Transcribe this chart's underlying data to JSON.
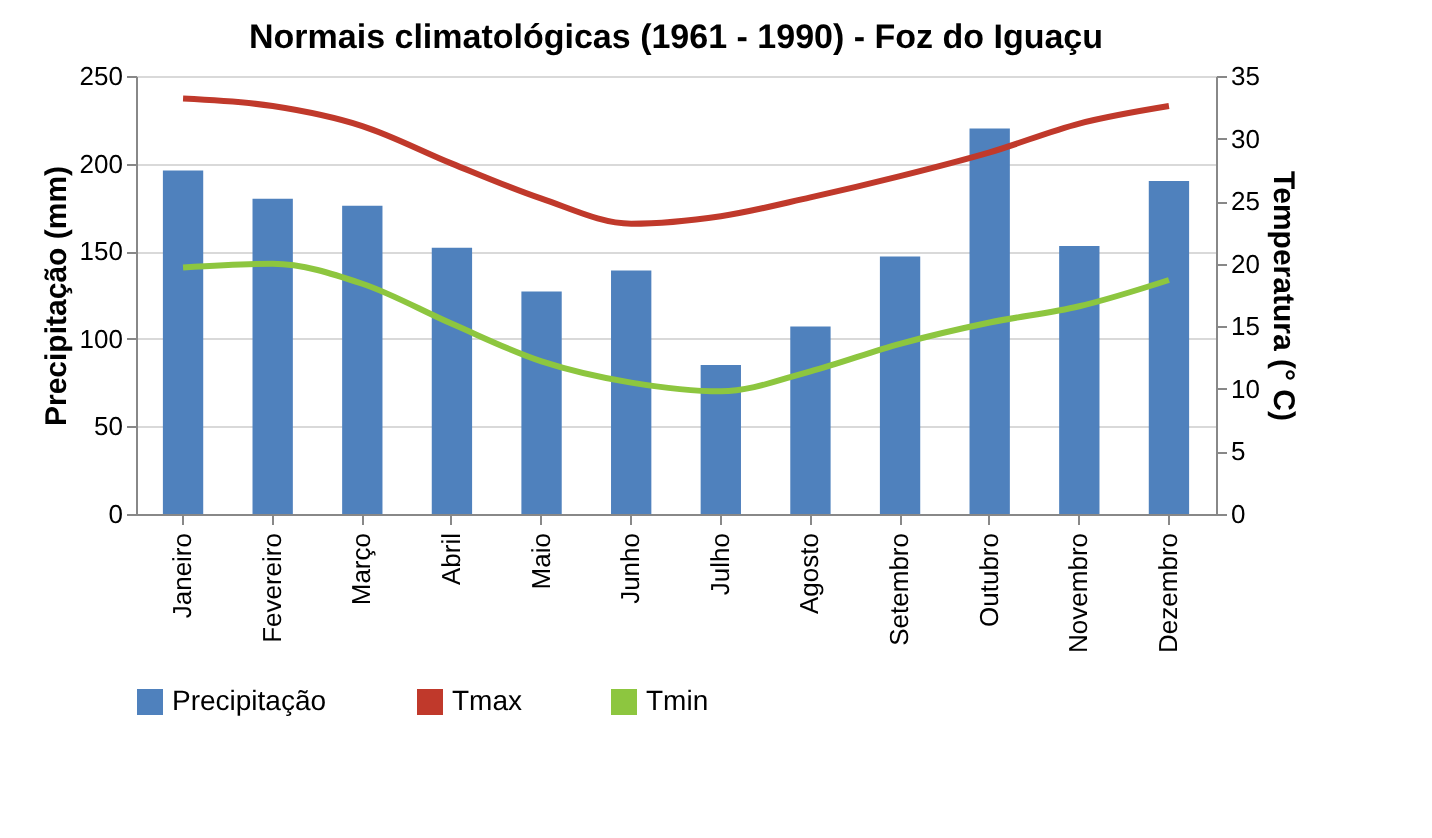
{
  "chart_data": {
    "type": "bar",
    "title": "Normais climatológicas (1961 - 1990) - Foz do Iguaçu",
    "categories": [
      "Janeiro",
      "Fevereiro",
      "Março",
      "Abril",
      "Maio",
      "Junho",
      "Julho",
      "Agosto",
      "Setembro",
      "Outubro",
      "Novembro",
      "Dezembro"
    ],
    "series": [
      {
        "name": "Precipitação",
        "color": "#4f81bd",
        "values": [
          196,
          180,
          176,
          152,
          127,
          139,
          85,
          107,
          147,
          220,
          153,
          190
        ]
      },
      {
        "name": "Tmax",
        "type": "line",
        "axis": "y2",
        "color": "#c0392b",
        "values": [
          33.2,
          32.6,
          31,
          28,
          25.2,
          23.2,
          23.8,
          25.3,
          27,
          28.9,
          31.2,
          32.6
        ]
      },
      {
        "name": "Tmin",
        "type": "line",
        "axis": "y2",
        "color": "#8dc63f",
        "values": [
          19.7,
          20,
          18.4,
          15.2,
          12.2,
          10.5,
          9.8,
          11.4,
          13.6,
          15.3,
          16.6,
          18.7
        ]
      }
    ],
    "ylabel": "Precipitação (mm)",
    "y2label": "Temperatura (° C)",
    "ylim": [
      0,
      250
    ],
    "yticks": [
      0,
      50,
      100,
      150,
      200,
      250
    ],
    "y2lim": [
      0,
      35
    ],
    "y2ticks": [
      0,
      5,
      10,
      15,
      20,
      25,
      30,
      35
    ],
    "grid": "y",
    "legend": "bottom",
    "line_style": "solid",
    "marker": "none"
  }
}
